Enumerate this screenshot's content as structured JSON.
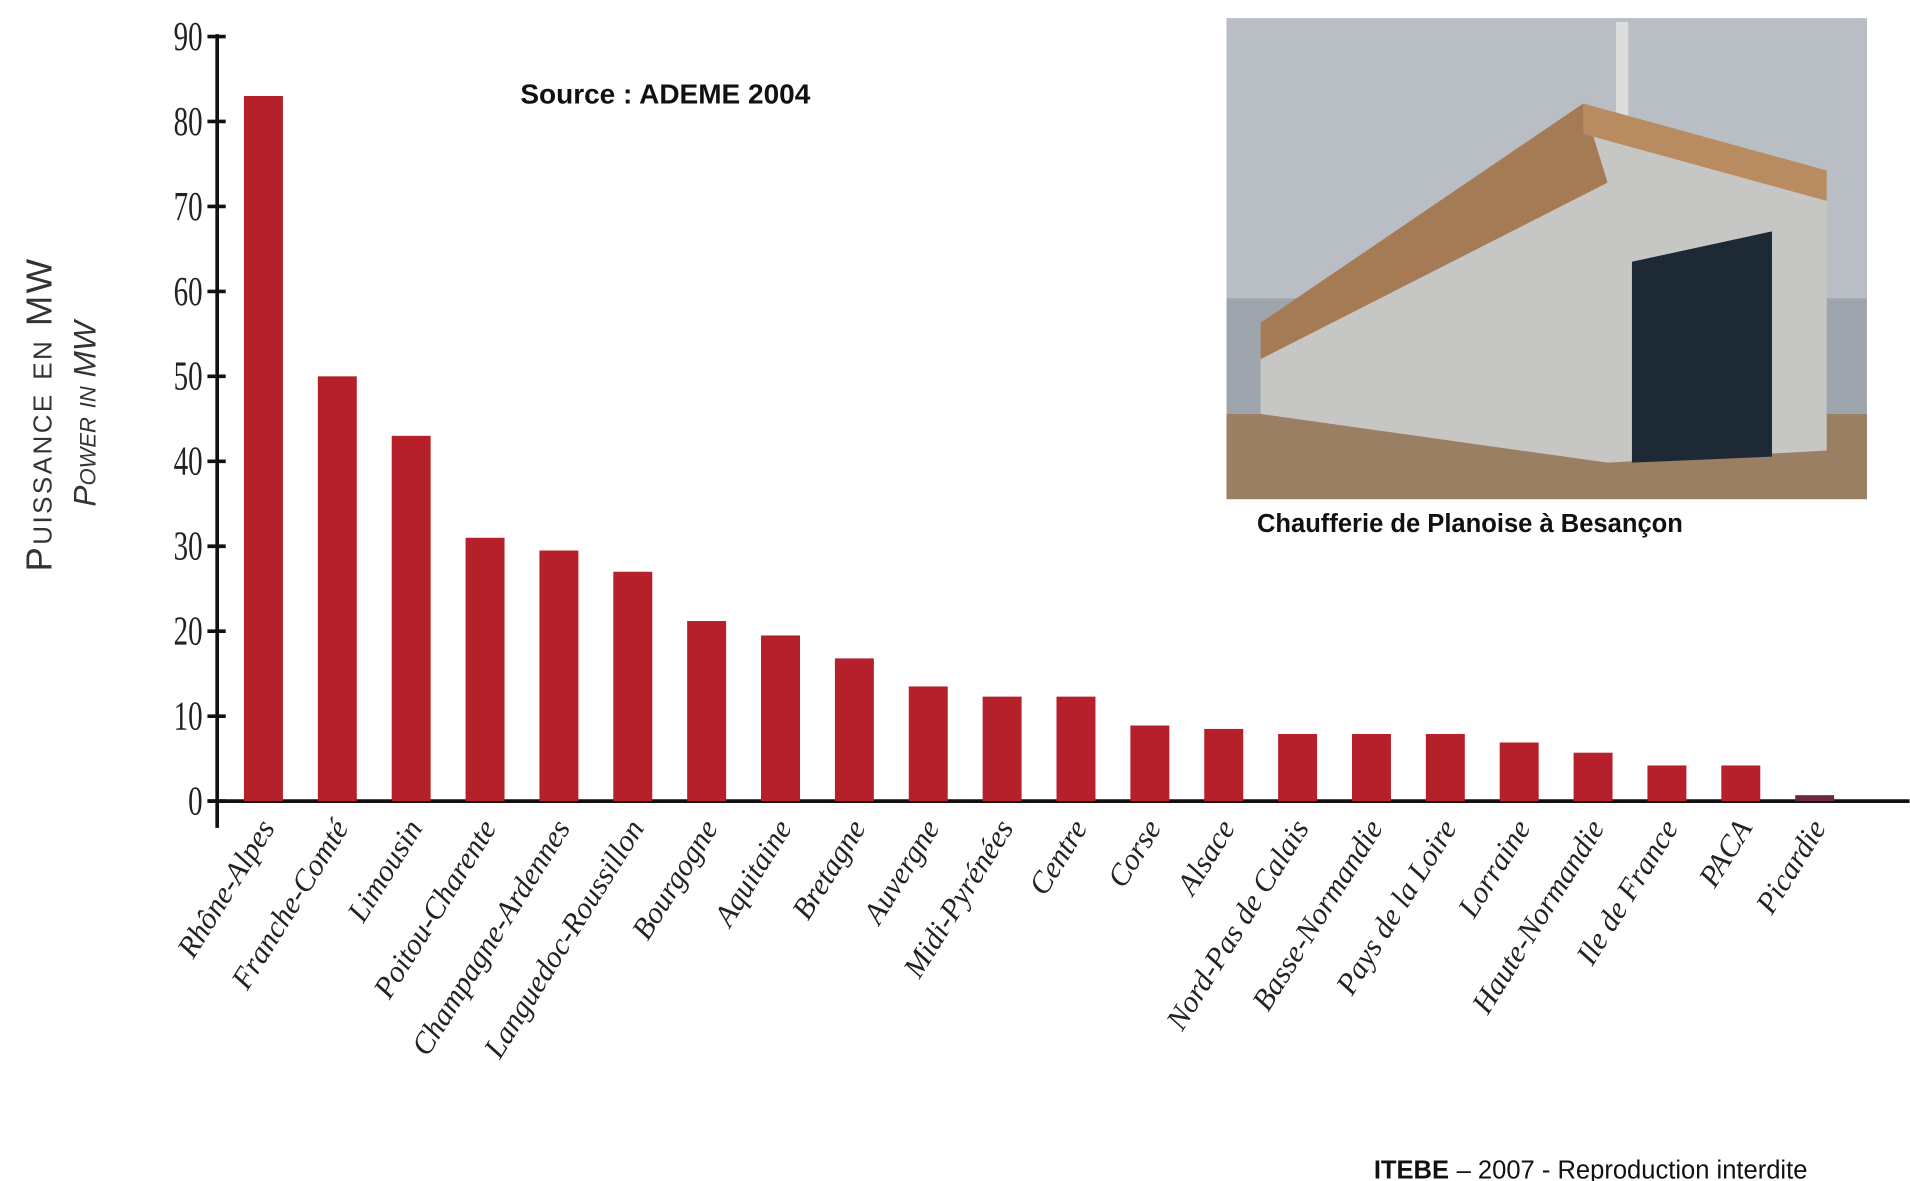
{
  "chart_data": {
    "type": "bar",
    "source": "Source : ADEME 2004",
    "y_label": "Puissance en MW",
    "y_label_en": "Power in MW",
    "categories": [
      "Rhône-Alpes",
      "Franche-Comté",
      "Limousin",
      "Poitou-Charente",
      "Champagne-Ardennes",
      "Languedoc-Roussillon",
      "Bourgogne",
      "Aquitaine",
      "Bretagne",
      "Auvergne",
      "Midi-Pyrénées",
      "Centre",
      "Corse",
      "Alsace",
      "Nord-Pas de Calais",
      "Basse-Normandie",
      "Pays de la Loire",
      "Lorraine",
      "Haute-Normandie",
      "Ile de France",
      "PACA",
      "Picardie"
    ],
    "values": [
      83,
      50,
      43,
      31,
      29.5,
      27,
      21.2,
      19.5,
      16.8,
      13.5,
      12.3,
      12.3,
      8.9,
      8.5,
      7.9,
      7.9,
      7.9,
      6.9,
      5.7,
      4.2,
      4.2,
      0.7
    ],
    "colors": [
      "#b5202a",
      "#b5202a",
      "#b5202a",
      "#b5202a",
      "#b5202a",
      "#b5202a",
      "#b5202a",
      "#b5202a",
      "#b5202a",
      "#b5202a",
      "#b5202a",
      "#b5202a",
      "#b5202a",
      "#b5202a",
      "#b5202a",
      "#b5202a",
      "#b5202a",
      "#b5202a",
      "#b5202a",
      "#b5202a",
      "#b5202a",
      "#6a2a3a"
    ],
    "ylim": [
      0,
      90
    ],
    "yticks": [
      0,
      10,
      20,
      30,
      40,
      50,
      60,
      70,
      80,
      90
    ]
  },
  "photo": {
    "caption": "Chaufferie de Planoise à Besançon"
  },
  "footer": {
    "org": "ITEBE",
    "text": "– 2007 - Reproduction interdite"
  }
}
